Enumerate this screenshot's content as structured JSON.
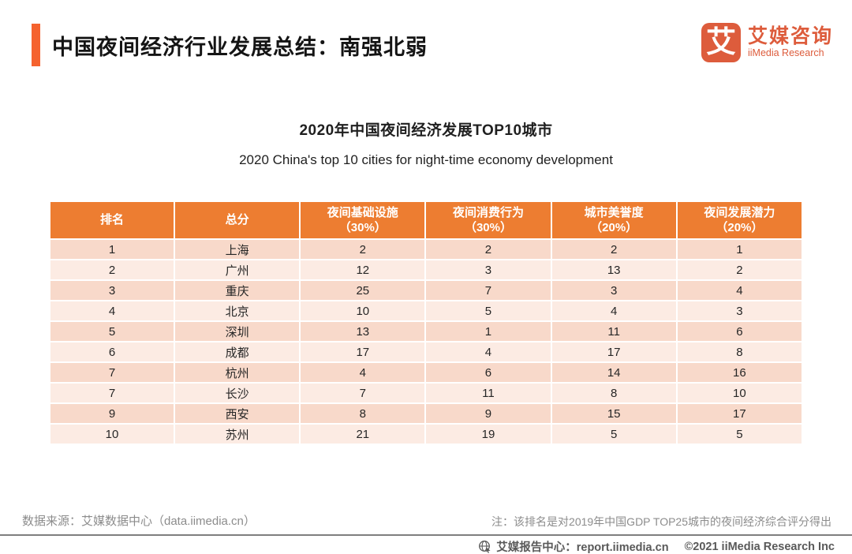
{
  "header": {
    "title": "中国夜间经济行业发展总结：南强北弱",
    "logo": {
      "mark": "艾",
      "brand_cn": "艾媒咨询",
      "brand_en": "iiMedia Research"
    }
  },
  "figure": {
    "title": "2020年中国夜间经济发展TOP10城市",
    "subtitle": "2020 China's top 10 cities for night-time economy development"
  },
  "chart_data": {
    "type": "table",
    "title": "2020年中国夜间经济发展TOP10城市",
    "subtitle": "2020 China's top 10 cities for night-time economy development",
    "columns": [
      {
        "label": "排名",
        "sub": ""
      },
      {
        "label": "总分",
        "sub": ""
      },
      {
        "label": "夜间基础设施",
        "sub": "（30%）"
      },
      {
        "label": "夜间消费行为",
        "sub": "（30%）"
      },
      {
        "label": "城市美誉度",
        "sub": "（20%）"
      },
      {
        "label": "夜间发展潜力",
        "sub": "（20%）"
      }
    ],
    "rows": [
      [
        "1",
        "上海",
        "2",
        "2",
        "2",
        "1"
      ],
      [
        "2",
        "广州",
        "12",
        "3",
        "13",
        "2"
      ],
      [
        "3",
        "重庆",
        "25",
        "7",
        "3",
        "4"
      ],
      [
        "4",
        "北京",
        "10",
        "5",
        "4",
        "3"
      ],
      [
        "5",
        "深圳",
        "13",
        "1",
        "11",
        "6"
      ],
      [
        "6",
        "成都",
        "17",
        "4",
        "17",
        "8"
      ],
      [
        "7",
        "杭州",
        "4",
        "6",
        "14",
        "16"
      ],
      [
        "7",
        "长沙",
        "7",
        "11",
        "8",
        "10"
      ],
      [
        "9",
        "西安",
        "8",
        "9",
        "15",
        "17"
      ],
      [
        "10",
        "苏州",
        "21",
        "19",
        "5",
        "5"
      ]
    ]
  },
  "footer": {
    "source": "数据来源：艾媒数据中心（data.iimedia.cn）",
    "note": "注：该排名是对2019年中国GDP TOP25城市的夜间经济综合评分得出",
    "report_center": "艾媒报告中心：report.iimedia.cn",
    "copyright": "©2021  iiMedia Research Inc"
  },
  "colors": {
    "accent_orange": "#F5622E",
    "table_header_orange": "#ED7D31",
    "brand_red_orange": "#DD5C3C",
    "row_band_dark": "#F8D9CA",
    "row_band_light": "#FCEBE3",
    "footer_gray": "#8C8C8C",
    "bottom_bar_gray": "#595959",
    "divider_gray": "#7F7F7F"
  }
}
